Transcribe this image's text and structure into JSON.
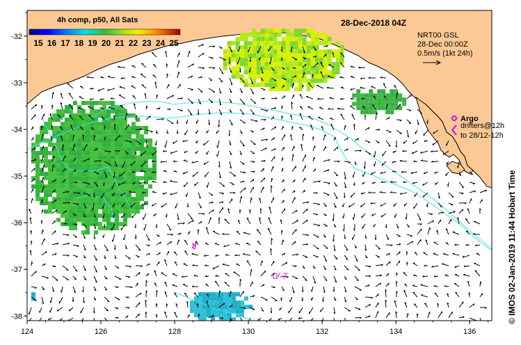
{
  "map": {
    "title": "28-Dec-2018 04Z",
    "product_label": "4h comp, p50, All Sats",
    "colorbar_ticks": [
      "15",
      "16",
      "17",
      "18",
      "19",
      "20",
      "21",
      "22",
      "23",
      "24",
      "25"
    ],
    "current_info": {
      "line1": "NRT00 GSL",
      "line2": "28-Dec 00:00Z",
      "line3": "0.5m/s (1kt 24h)"
    },
    "argo_label": "Argo",
    "drifters_line1": "drifters@12h",
    "drifters_line2": "to 28/12-12h",
    "credit": "© IMOS 02-Jan-2019 11:44 Hobart Time",
    "drifter_tag": "0/-7",
    "x_axis": {
      "ticks": [
        124,
        126,
        128,
        130,
        132,
        134,
        136
      ],
      "tick_labels": [
        "124",
        "126",
        "128",
        "130",
        "132",
        "134",
        "136"
      ],
      "lon_range": [
        124,
        136.6
      ]
    },
    "y_axis": {
      "ticks": [
        -32,
        -33,
        -34,
        -35,
        -36,
        -37,
        -38
      ],
      "tick_labels": [
        "-32",
        "-33",
        "-34",
        "-35",
        "-36",
        "-37",
        "-38"
      ],
      "lat_range": [
        -31.45,
        -38.1
      ]
    },
    "colors": {
      "land": "#fcc995",
      "coast": "#000000",
      "contour": "#40e0f0",
      "argo": "#e000e0",
      "drifter": "#e000e0"
    },
    "sst_patches": [
      {
        "id": "bight-north",
        "lon": [
          129.2,
          132.6
        ],
        "lat": [
          -31.75,
          -33.15
        ],
        "colors": [
          "#d8f000",
          "#b0e818",
          "#80d830"
        ]
      },
      {
        "id": "west-shelf",
        "lon": [
          124.0,
          127.5
        ],
        "lat": [
          -33.3,
          -36.2
        ],
        "colors": [
          "#30b040",
          "#3cba3a",
          "#48c040"
        ]
      },
      {
        "id": "east-strip",
        "lon": [
          132.7,
          134.2
        ],
        "lat": [
          -33.05,
          -33.65
        ],
        "colors": [
          "#40b848",
          "#38b040"
        ]
      },
      {
        "id": "south-cool",
        "lon": [
          128.3,
          130.0
        ],
        "lat": [
          -37.4,
          -38.1
        ],
        "colors": [
          "#20b0c8",
          "#30c0d8"
        ]
      },
      {
        "id": "southwest-cool",
        "lon": [
          124.0,
          124.2
        ],
        "lat": [
          -37.4,
          -37.7
        ],
        "colors": [
          "#28a8e0"
        ]
      }
    ]
  }
}
